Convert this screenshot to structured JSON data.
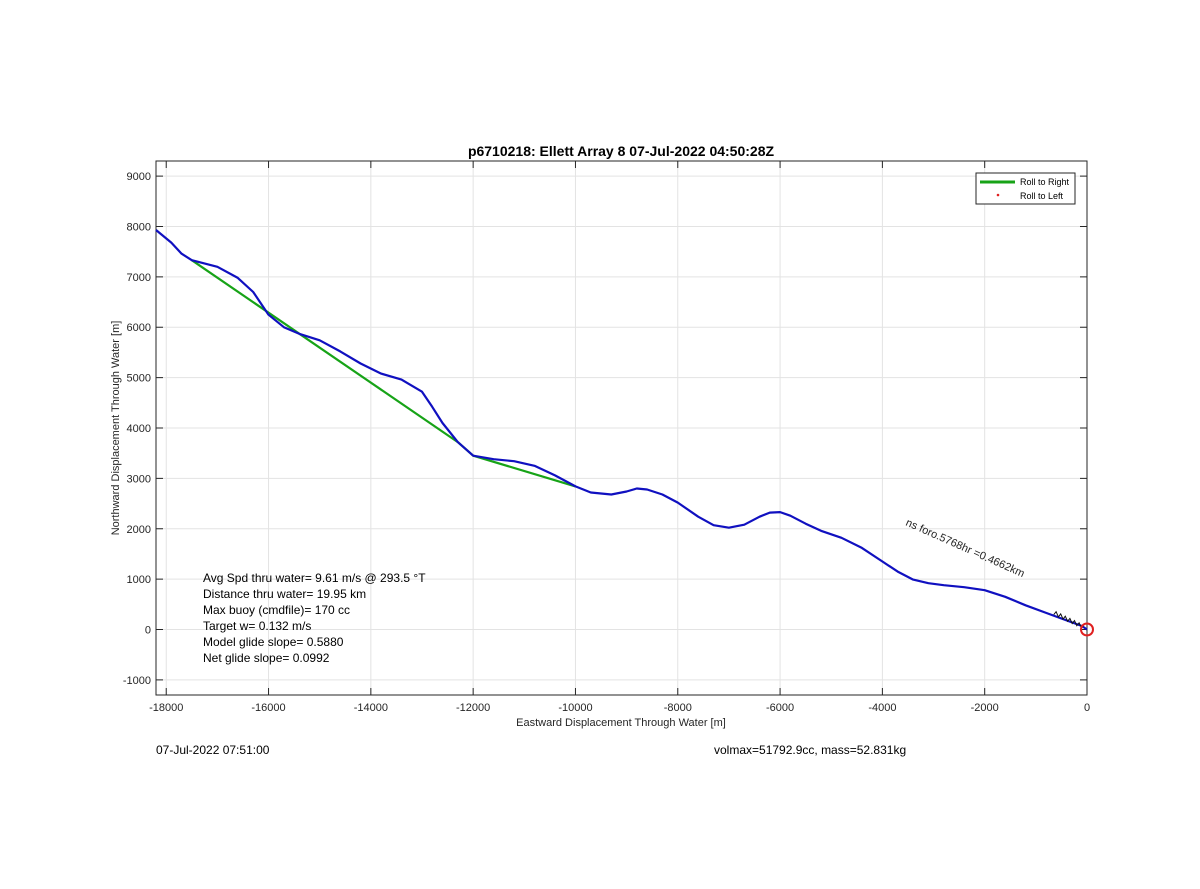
{
  "chart_data": {
    "type": "line",
    "title": "p6710218: Ellett Array 8 07-Jul-2022 04:50:28Z",
    "xlabel": "Eastward Displacement Through Water [m]",
    "ylabel": "Northward Displacement Through Water [m]",
    "xlim": [
      -18200,
      0
    ],
    "ylim": [
      -1300,
      9300
    ],
    "xticks": [
      -18000,
      -16000,
      -14000,
      -12000,
      -10000,
      -8000,
      -6000,
      -4000,
      -2000,
      0
    ],
    "yticks": [
      -1000,
      0,
      1000,
      2000,
      3000,
      4000,
      5000,
      6000,
      7000,
      8000,
      9000
    ],
    "grid": true,
    "legend_position": "top-right",
    "legend": [
      "Roll to Right",
      "Roll to Left"
    ],
    "series": [
      {
        "name": "Roll to Right",
        "color": "#17a317",
        "x": [
          -17500,
          -12300,
          -12000,
          -10000
        ],
        "y": [
          7330,
          3720,
          3450,
          2840
        ]
      },
      {
        "name": "Roll to Left",
        "color": "#e02020",
        "marker": "dot",
        "x": [],
        "y": []
      },
      {
        "name": "track",
        "color": "#1010c0",
        "x": [
          -18200,
          -17900,
          -17700,
          -17500,
          -17000,
          -16600,
          -16300,
          -16000,
          -15700,
          -15400,
          -15000,
          -14600,
          -14200,
          -13800,
          -13400,
          -13000,
          -12800,
          -12600,
          -12300,
          -12000,
          -11600,
          -11200,
          -10800,
          -10400,
          -10000,
          -9700,
          -9300,
          -9000,
          -8800,
          -8600,
          -8300,
          -8000,
          -7600,
          -7300,
          -7000,
          -6700,
          -6400,
          -6200,
          -6000,
          -5800,
          -5500,
          -5200,
          -4800,
          -4400,
          -4000,
          -3700,
          -3400,
          -3100,
          -2800,
          -2400,
          -2000,
          -1600,
          -1200,
          -800,
          -400,
          -100,
          0
        ],
        "y": [
          7930,
          7680,
          7460,
          7330,
          7200,
          6980,
          6700,
          6250,
          6000,
          5870,
          5740,
          5520,
          5280,
          5080,
          4960,
          4720,
          4420,
          4100,
          3720,
          3450,
          3380,
          3340,
          3250,
          3060,
          2840,
          2720,
          2680,
          2740,
          2800,
          2780,
          2680,
          2520,
          2240,
          2070,
          2020,
          2080,
          2240,
          2320,
          2330,
          2260,
          2100,
          1960,
          1820,
          1620,
          1350,
          1150,
          990,
          920,
          880,
          840,
          780,
          650,
          480,
          330,
          180,
          70,
          0
        ]
      }
    ],
    "end_marker": {
      "x": 0,
      "y": 0,
      "color": "#e02020"
    },
    "annotation": "ns foro.5768hr =0.4662km",
    "stats": [
      "Avg Spd thru water=  9.61 m/s @ 293.5 °T",
      "Distance thru water= 19.95 km",
      "Max buoy (cmdfile)= 170 cc",
      "Target w= 0.132 m/s",
      "Model glide slope= 0.5880",
      "Net glide slope= 0.0992"
    ]
  },
  "footer": {
    "left": "07-Jul-2022 07:51:00",
    "right": "volmax=51792.9cc, mass=52.831kg"
  }
}
